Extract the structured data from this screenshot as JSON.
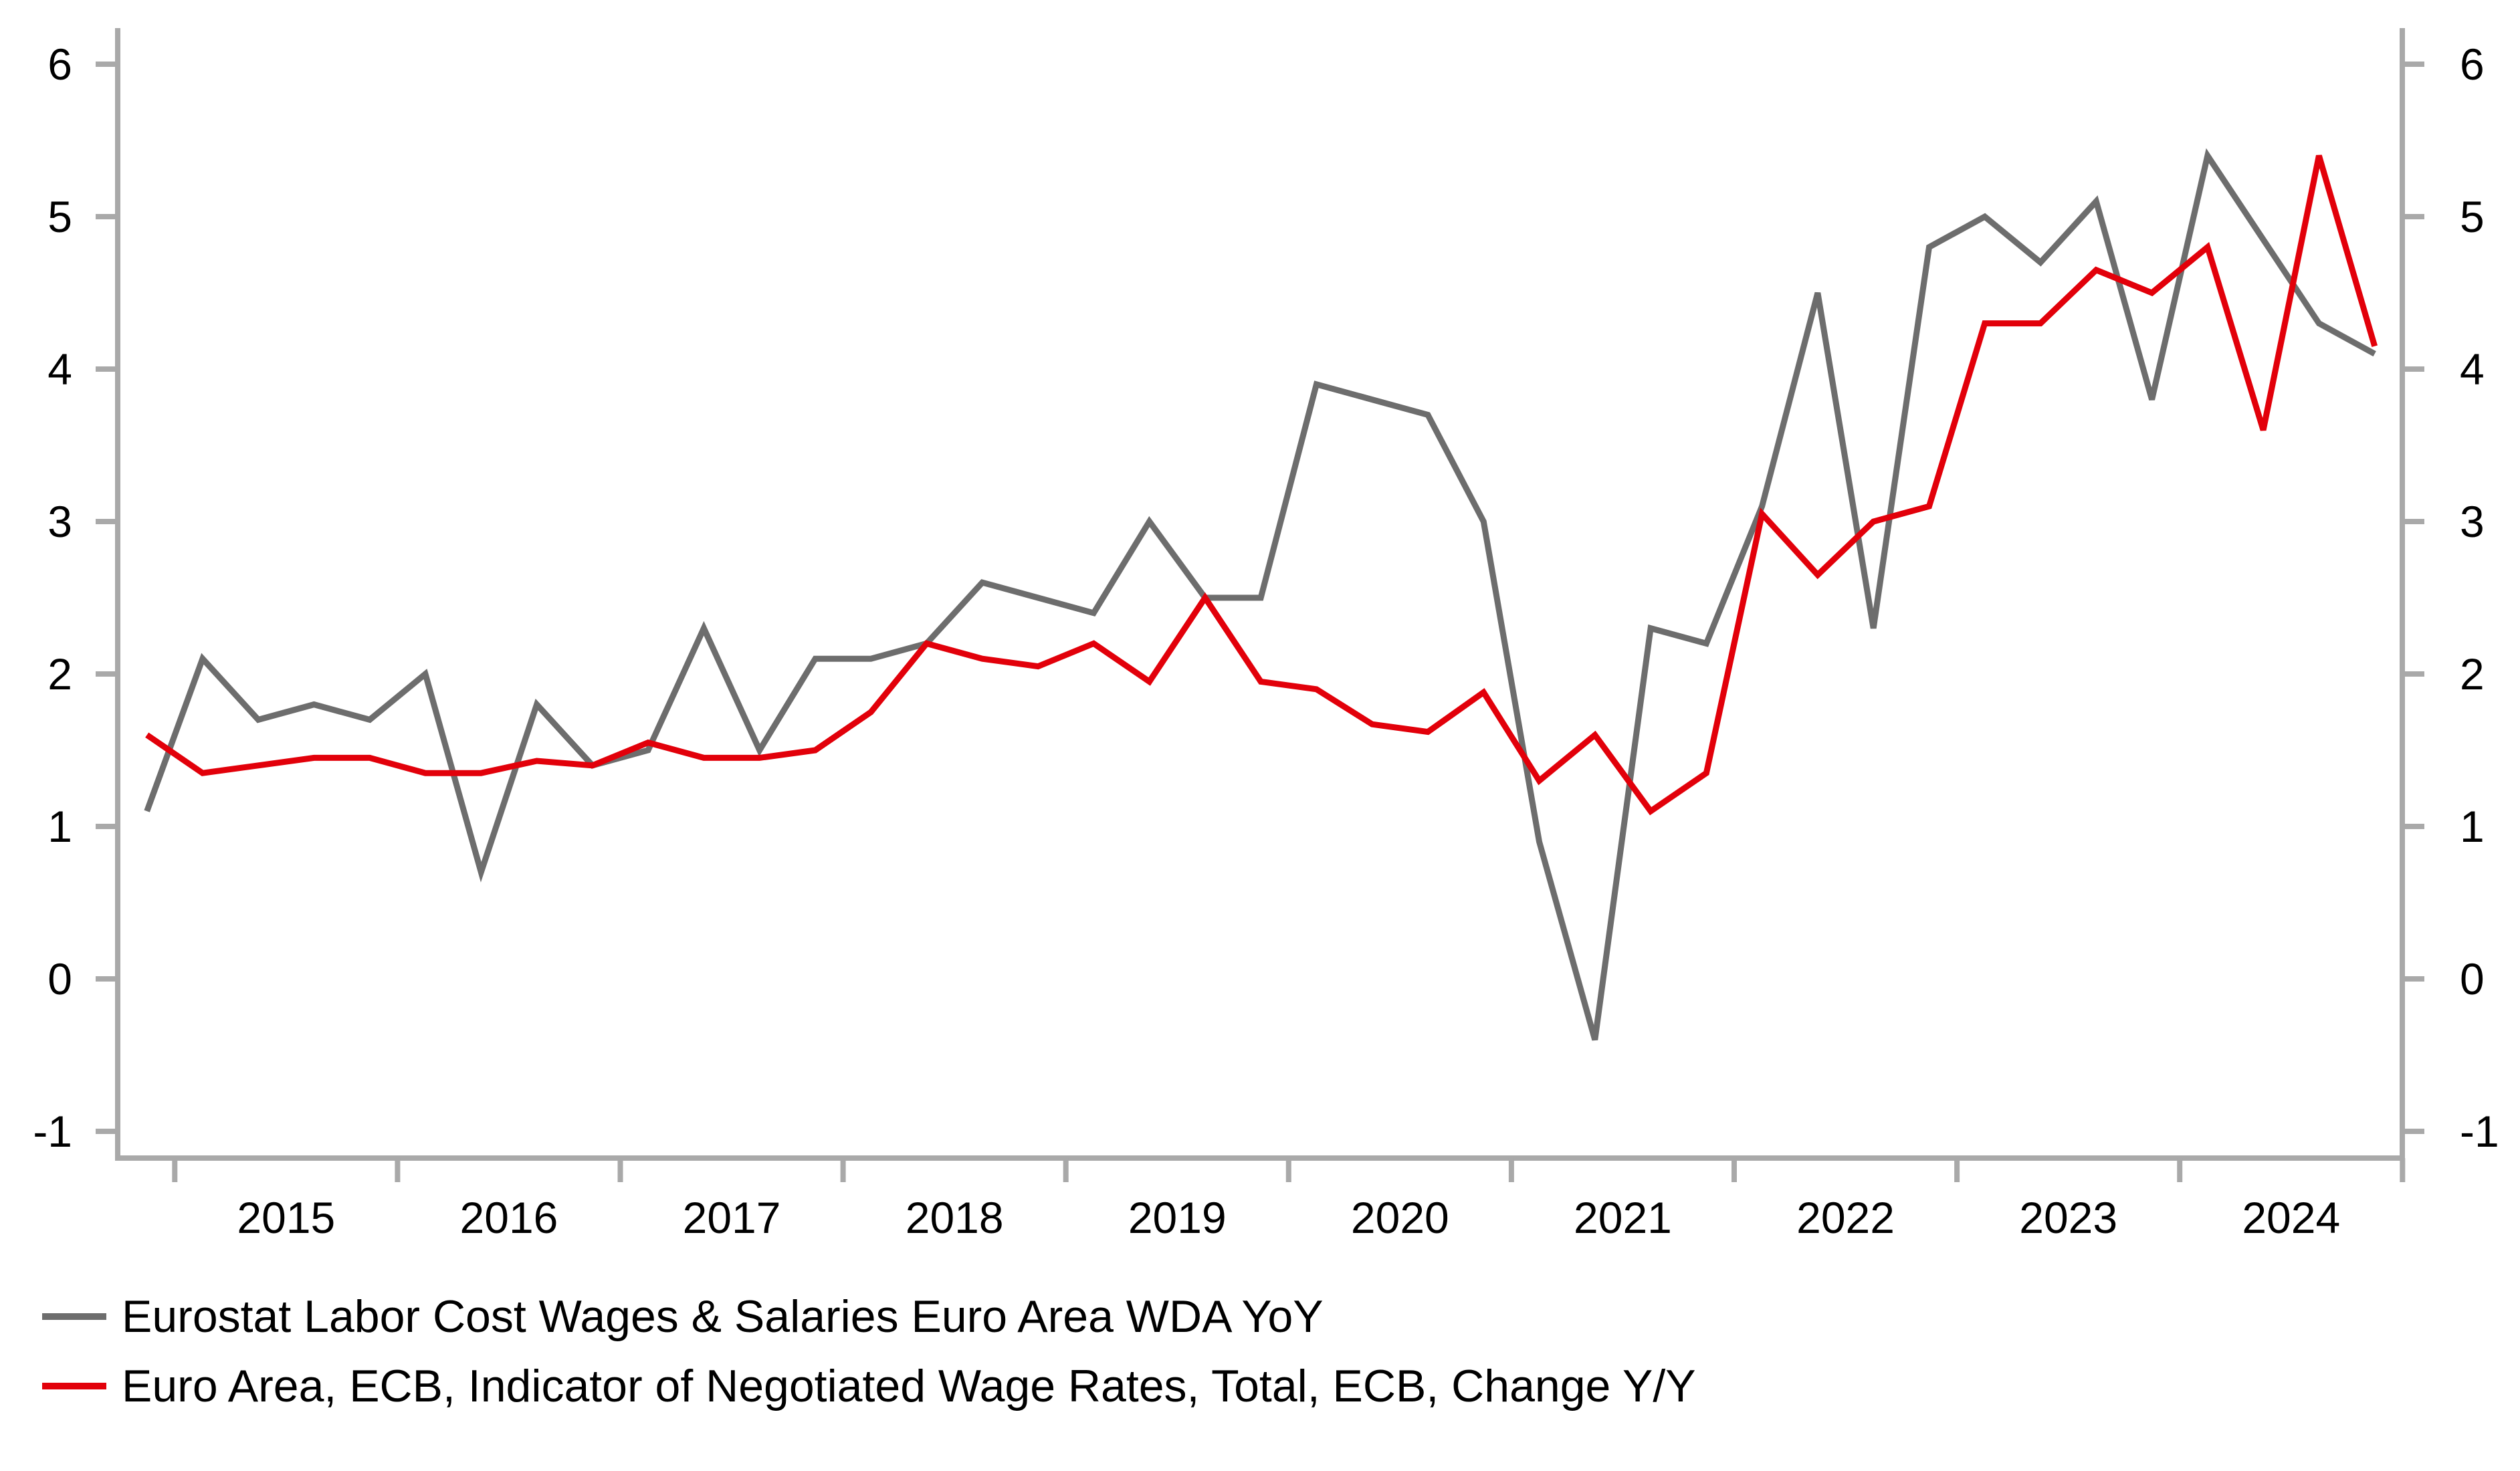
{
  "chart_data": {
    "type": "line",
    "title": "",
    "xlabel": "",
    "ylabel": "",
    "frequency": "quarterly",
    "ylim": [
      -1,
      6
    ],
    "yticks": [
      -1,
      0,
      1,
      2,
      3,
      4,
      5,
      6
    ],
    "ytick_sides": "both",
    "x_year_tick_positions": [
      2015,
      2016,
      2017,
      2018,
      2019,
      2020,
      2021,
      2022,
      2023,
      2024,
      2025
    ],
    "x_year_labels": [
      "2015",
      "2016",
      "2017",
      "2018",
      "2019",
      "2020",
      "2021",
      "2022",
      "2023",
      "2024"
    ],
    "grid": false,
    "legend_position": "bottom-left",
    "axis_color": "#a9a9a9",
    "text_color": "#000000",
    "categories": [
      "2014 Q4",
      "2015 Q1",
      "2015 Q2",
      "2015 Q3",
      "2015 Q4",
      "2016 Q1",
      "2016 Q2",
      "2016 Q3",
      "2016 Q4",
      "2017 Q1",
      "2017 Q2",
      "2017 Q3",
      "2017 Q4",
      "2018 Q1",
      "2018 Q2",
      "2018 Q3",
      "2018 Q4",
      "2019 Q1",
      "2019 Q2",
      "2019 Q3",
      "2019 Q4",
      "2020 Q1",
      "2020 Q2",
      "2020 Q3",
      "2020 Q4",
      "2021 Q1",
      "2021 Q2",
      "2021 Q3",
      "2021 Q4",
      "2022 Q1",
      "2022 Q2",
      "2022 Q3",
      "2022 Q4",
      "2023 Q1",
      "2023 Q2",
      "2023 Q3",
      "2023 Q4",
      "2024 Q1",
      "2024 Q2",
      "2024 Q3",
      "2024 Q4"
    ],
    "series": [
      {
        "name": "Eurostat Labor Cost Wages & Salaries Euro Area WDA YoY",
        "color": "#6d6d6d",
        "values": [
          1.1,
          2.1,
          1.7,
          1.8,
          1.7,
          2.0,
          0.7,
          1.8,
          1.4,
          1.5,
          2.3,
          1.5,
          2.1,
          2.1,
          2.2,
          2.6,
          2.5,
          2.4,
          3.0,
          2.5,
          2.5,
          3.9,
          3.8,
          3.7,
          3.0,
          0.9,
          -0.4,
          2.3,
          2.2,
          3.1,
          4.5,
          2.3,
          4.8,
          5.0,
          4.7,
          5.1,
          3.8,
          5.4,
          4.85,
          4.3,
          4.1
        ]
      },
      {
        "name": "Euro Area, ECB, Indicator of Negotiated Wage Rates, Total, ECB, Change Y/Y",
        "color": "#e2000a",
        "values": [
          1.6,
          1.35,
          1.4,
          1.45,
          1.45,
          1.35,
          1.35,
          1.43,
          1.4,
          1.55,
          1.45,
          1.45,
          1.5,
          1.75,
          2.2,
          2.1,
          2.05,
          2.2,
          1.95,
          2.5,
          1.95,
          1.9,
          1.67,
          1.62,
          1.88,
          1.3,
          1.6,
          1.1,
          1.35,
          3.05,
          2.65,
          3.0,
          3.1,
          4.3,
          4.3,
          4.65,
          4.5,
          4.8,
          3.6,
          5.4,
          4.15
        ]
      }
    ]
  }
}
